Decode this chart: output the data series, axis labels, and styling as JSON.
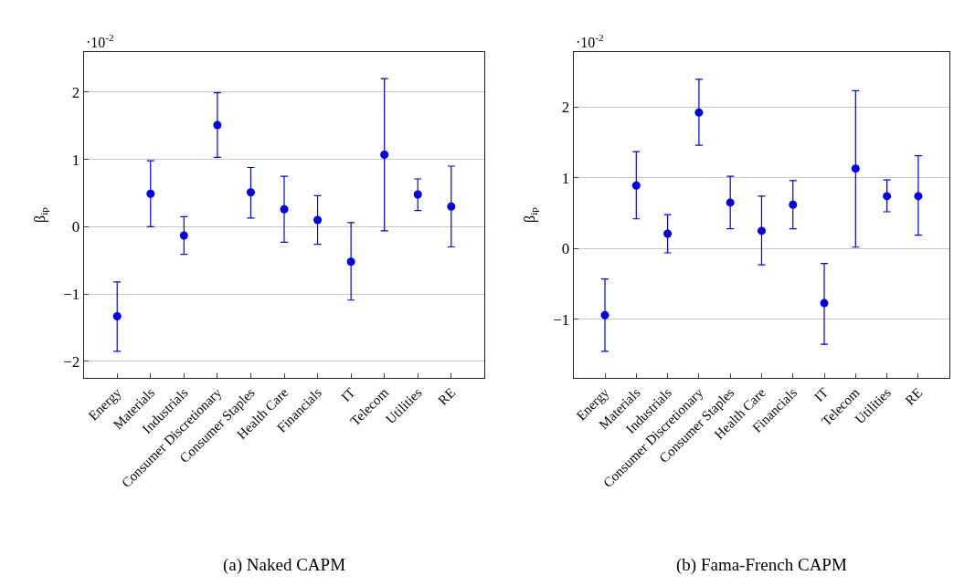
{
  "chart_data": [
    {
      "type": "scatter",
      "ylabel": "β$_{ip}$",
      "annotations": [
        "·10$^{-2}$",
        "(a) Naked CAPM"
      ],
      "categories": [
        "Energy",
        "Materials",
        "Industrials",
        "Consumer Discretionary",
        "Consumer Staples",
        "Health Care",
        "Financials",
        "IT",
        "Telecom",
        "Utilities",
        "RE"
      ],
      "series": [
        {
          "color": "#0000e6",
          "values": [
            -1.33,
            0.49,
            -0.13,
            1.51,
            0.51,
            0.26,
            0.1,
            -0.52,
            1.07,
            0.48,
            0.3
          ],
          "errors": [
            [
              -1.85,
              -0.82
            ],
            [
              0.0,
              0.98
            ],
            [
              -0.41,
              0.15
            ],
            [
              1.03,
              1.99
            ],
            [
              0.13,
              0.88
            ],
            [
              -0.23,
              0.75
            ],
            [
              -0.26,
              0.46
            ],
            [
              -1.09,
              0.06
            ],
            [
              -0.06,
              2.2
            ],
            [
              0.24,
              0.71
            ],
            [
              -0.3,
              0.9
            ]
          ]
        }
      ],
      "ylim": [
        -2.25,
        2.6
      ],
      "yticks": [
        -2,
        -1,
        0,
        1,
        2
      ],
      "grid": "y",
      "marker": "circle"
    },
    {
      "type": "scatter",
      "ylabel": "β$_{ip}$",
      "annotations": [
        "·10$^{-2}$",
        "(b) Fama-French CAPM"
      ],
      "categories": [
        "Energy",
        "Materials",
        "Industrials",
        "Consumer Discretionary",
        "Consumer Staples",
        "Health Care",
        "Financials",
        "IT",
        "Telecom",
        "Utilities",
        "RE"
      ],
      "series": [
        {
          "color": "#0000e6",
          "values": [
            -0.94,
            0.89,
            0.21,
            1.92,
            0.65,
            0.25,
            0.62,
            -0.77,
            1.13,
            0.74,
            0.74
          ],
          "errors": [
            [
              -1.45,
              -0.43
            ],
            [
              0.42,
              1.37
            ],
            [
              -0.06,
              0.48
            ],
            [
              1.46,
              2.39
            ],
            [
              0.28,
              1.02
            ],
            [
              -0.23,
              0.74
            ],
            [
              0.28,
              0.96
            ],
            [
              -1.35,
              -0.21
            ],
            [
              0.02,
              2.23
            ],
            [
              0.52,
              0.97
            ],
            [
              0.19,
              1.31
            ]
          ]
        }
      ],
      "ylim": [
        -1.83,
        2.78
      ],
      "yticks": [
        -1,
        0,
        1,
        2
      ],
      "grid": "y",
      "marker": "circle"
    }
  ]
}
